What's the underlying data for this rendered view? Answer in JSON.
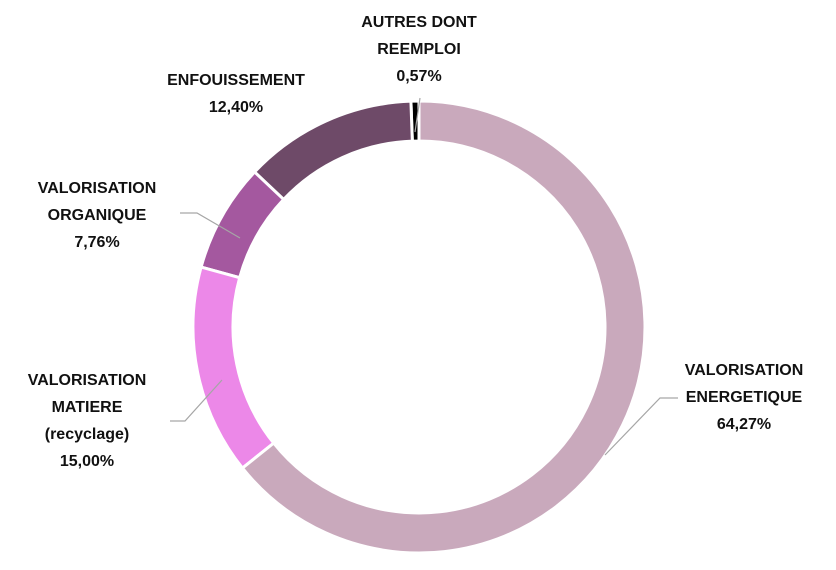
{
  "chart_data": {
    "type": "donut",
    "categories": [
      "VALORISATION\nENERGETIQUE",
      "VALORISATION\nMATIERE\n(recyclage)",
      "VALORISATION\nORGANIQUE",
      "ENFOUISSEMENT",
      "AUTRES DONT\nREEMPLOI"
    ],
    "values": [
      64.27,
      15.0,
      7.76,
      12.4,
      0.57
    ],
    "value_labels": [
      "64,27%",
      "15,00%",
      "7,76%",
      "12,40%",
      "0,57%"
    ],
    "colors": [
      "#c9a9bc",
      "#ec88e8",
      "#a4589f",
      "#6e4a68",
      "#000000"
    ]
  }
}
